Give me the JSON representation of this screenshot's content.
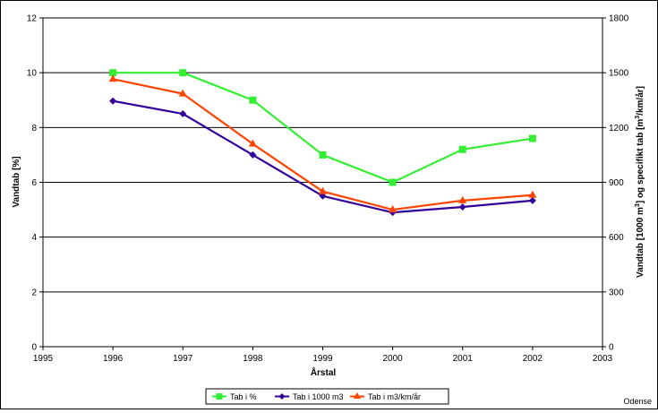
{
  "chart_data": {
    "type": "line",
    "xlabel": "Årstal",
    "ylabel_left": "Vandtab [%]",
    "ylabel_right_parts": [
      "Vandtab [1000 m",
      "3",
      "] og specifikt tab [m",
      "3",
      "/km/år]"
    ],
    "xlim": [
      1995,
      2003
    ],
    "ylim_left": [
      0,
      12
    ],
    "ylim_right": [
      0,
      1800
    ],
    "x_ticks": [
      "1995",
      "1996",
      "1997",
      "1998",
      "1999",
      "2000",
      "2001",
      "2002",
      "2003"
    ],
    "y_left_ticks": [
      "0",
      "2",
      "4",
      "6",
      "8",
      "10",
      "12"
    ],
    "y_right_ticks": [
      "0",
      "300",
      "600",
      "900",
      "1200",
      "1500",
      "1800"
    ],
    "grid": "horizontal",
    "legend_position": "bottom-center",
    "footer_note": "Odense",
    "x": [
      1996,
      1997,
      1998,
      1999,
      2000,
      2001,
      2002
    ],
    "series": [
      {
        "name": "Tab i %",
        "axis": "left",
        "color": "#33ee33",
        "marker": "square",
        "values": [
          10.0,
          10.0,
          9.0,
          7.0,
          6.0,
          7.2,
          7.6
        ]
      },
      {
        "name": "Tab i 1000 m3",
        "axis": "right",
        "color": "#330099",
        "marker": "diamond",
        "values": [
          1345,
          1275,
          1050,
          825,
          735,
          765,
          800
        ]
      },
      {
        "name": "Tab i m3/km/år",
        "axis": "right",
        "color": "#ff4400",
        "marker": "triangle",
        "values": [
          1465,
          1385,
          1110,
          850,
          750,
          800,
          830
        ]
      }
    ]
  }
}
